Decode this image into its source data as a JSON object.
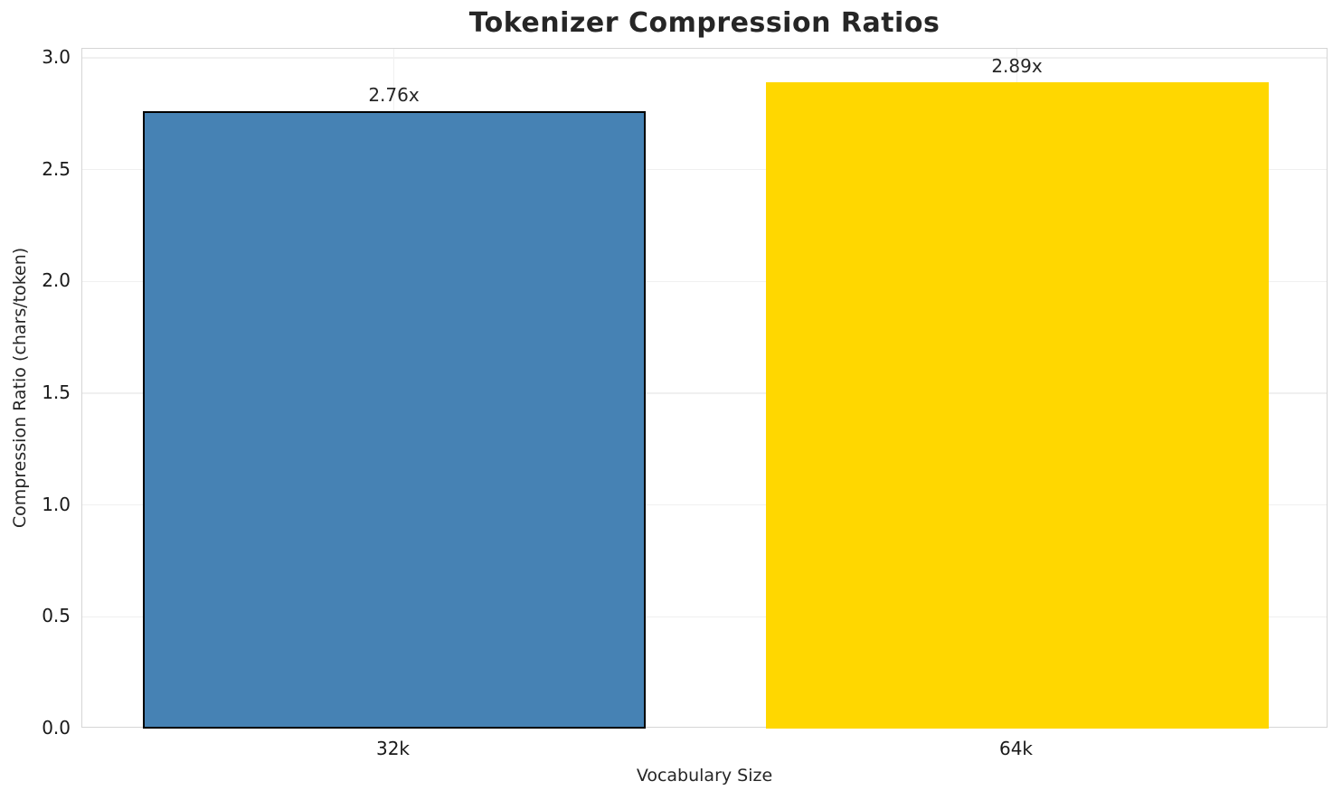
{
  "chart_data": {
    "type": "bar",
    "title": "Tokenizer Compression Ratios",
    "xlabel": "Vocabulary Size",
    "ylabel": "Compression Ratio (chars/token)",
    "categories": [
      "32k",
      "64k"
    ],
    "values": [
      2.76,
      2.89
    ],
    "bar_labels": [
      "2.76x",
      "2.89x"
    ],
    "bar_colors": [
      "#4682B4",
      "#FFD700"
    ],
    "bar_edge_colors": [
      "#000000",
      null
    ],
    "yticks": [
      "0.0",
      "0.5",
      "1.0",
      "1.5",
      "2.0",
      "2.5",
      "3.0"
    ],
    "ylim": [
      0,
      3.04
    ],
    "grid": true,
    "legend": false
  }
}
